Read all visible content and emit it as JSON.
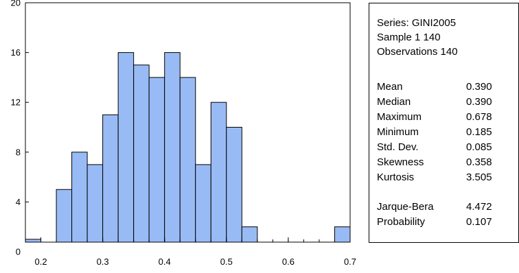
{
  "chart_data": {
    "type": "bar",
    "subtype": "histogram",
    "bin_width": 0.025,
    "bins_start": [
      0.175,
      0.2,
      0.225,
      0.25,
      0.275,
      0.3,
      0.325,
      0.35,
      0.375,
      0.4,
      0.425,
      0.45,
      0.475,
      0.5,
      0.525,
      0.55,
      0.575,
      0.6,
      0.625,
      0.65,
      0.675
    ],
    "values": [
      1,
      0,
      5,
      8,
      7,
      11,
      16,
      15,
      14,
      16,
      14,
      7,
      12,
      10,
      2,
      0,
      0,
      0,
      0,
      0,
      2
    ],
    "xlim": [
      0.175,
      0.7
    ],
    "ylim": [
      0,
      20
    ],
    "x_ticks": [
      "0.2",
      "0.3",
      "0.4",
      "0.5",
      "0.6",
      "0.7"
    ],
    "x_tick_values": [
      0.2,
      0.3,
      0.4,
      0.5,
      0.6,
      0.7
    ],
    "y_ticks": [
      "0",
      "4",
      "8",
      "12",
      "16",
      "20"
    ],
    "y_tick_values": [
      0,
      4,
      8,
      12,
      16,
      20
    ],
    "bar_color": "#99bbf5",
    "bar_edge_color": "#000000",
    "title": "",
    "xlabel": "",
    "ylabel": "",
    "grid": false
  },
  "stats": {
    "header": [
      "Series: GINI2005",
      "Sample 1 140",
      "Observations 140"
    ],
    "rows": [
      {
        "label": "Mean",
        "value": "0.390"
      },
      {
        "label": "Median",
        "value": "0.390"
      },
      {
        "label": "Maximum",
        "value": "0.678"
      },
      {
        "label": "Minimum",
        "value": "0.185"
      },
      {
        "label": "Std. Dev.",
        "value": "0.085"
      },
      {
        "label": "Skewness",
        "value": "0.358"
      },
      {
        "label": "Kurtosis",
        "value": "3.505"
      }
    ],
    "test_rows": [
      {
        "label": "Jarque-Bera",
        "value": "4.472"
      },
      {
        "label": "Probability",
        "value": "0.107"
      }
    ]
  }
}
